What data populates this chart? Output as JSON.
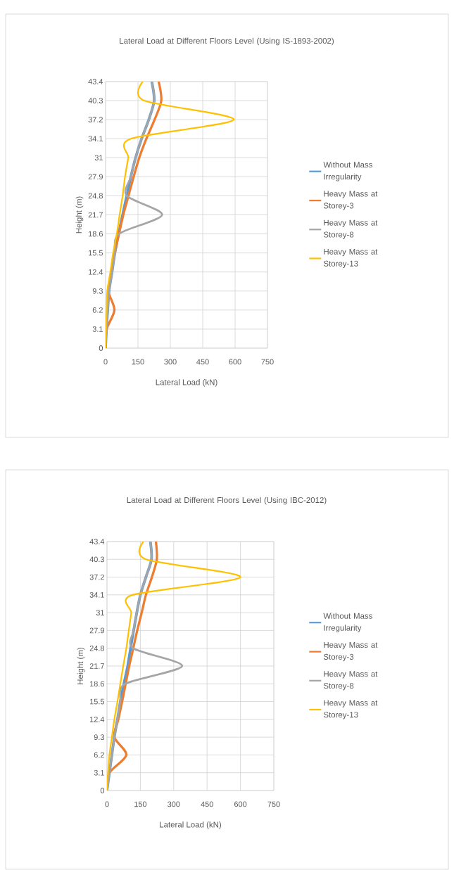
{
  "chart_data": [
    {
      "type": "line",
      "title": "Lateral Load at Different Floors Level (Using IS-1893-2002)",
      "xlabel": "Lateral Load (kN)",
      "ylabel": "Height (m)",
      "xlim": [
        0,
        750
      ],
      "xticks": [
        0,
        150,
        300,
        450,
        600,
        750
      ],
      "ylim": [
        0,
        43.4
      ],
      "yticks": [
        0,
        3.1,
        6.2,
        9.3,
        12.4,
        15.5,
        18.6,
        21.7,
        24.8,
        27.9,
        31,
        34.1,
        37.2,
        40.3,
        43.4
      ],
      "grid": true,
      "legend": "right",
      "series": [
        {
          "name": "Without Mass Irregularity",
          "color": "#5b9bd5",
          "x": [
            0,
            4,
            10,
            16,
            30,
            43,
            60,
            79,
            98,
            117,
            139,
            167,
            200,
            225,
            214
          ],
          "values": [
            0,
            3.1,
            6.2,
            9.3,
            12.4,
            15.5,
            18.6,
            21.7,
            24.8,
            27.9,
            31,
            34.1,
            37.2,
            40.3,
            43.4
          ]
        },
        {
          "name": "Heavy Mass at Storey-3",
          "color": "#ed7d31",
          "x": [
            0,
            5,
            41,
            13,
            27,
            43,
            62,
            82,
            106,
            130,
            156,
            189,
            227,
            258,
            246
          ],
          "values": [
            0,
            3.1,
            6.2,
            9.3,
            12.4,
            15.5,
            18.6,
            21.7,
            24.8,
            27.9,
            31,
            34.1,
            37.2,
            40.3,
            43.4
          ]
        },
        {
          "name": "Heavy Mass at Storey-8",
          "color": "#a5a5a5",
          "x": [
            0,
            4,
            10,
            16,
            30,
            43,
            62,
            262,
            98,
            117,
            139,
            167,
            200,
            225,
            214
          ],
          "values": [
            0,
            3.1,
            6.2,
            9.3,
            12.4,
            15.5,
            18.6,
            21.7,
            24.8,
            27.9,
            31,
            34.1,
            37.2,
            40.3,
            43.4
          ]
        },
        {
          "name": "Heavy Mass at Storey-13",
          "color": "#ffc000",
          "x": [
            0,
            2,
            5,
            8,
            22,
            35,
            52,
            65,
            79,
            90,
            105,
            117,
            594,
            178,
            172
          ],
          "values": [
            0,
            3.1,
            6.2,
            9.3,
            12.4,
            15.5,
            18.6,
            21.7,
            24.8,
            27.9,
            31,
            34.1,
            37.2,
            40.3,
            43.4
          ]
        }
      ]
    },
    {
      "type": "line",
      "title": "Lateral Load at Different Floors Level (Using IBC-2012)",
      "xlabel": "Lateral Load (kN)",
      "ylabel": "Height (m)",
      "xlim": [
        0,
        750
      ],
      "xticks": [
        0,
        150,
        300,
        450,
        600,
        750
      ],
      "ylim": [
        0,
        43.4
      ],
      "yticks": [
        0,
        3.1,
        6.2,
        9.3,
        12.4,
        15.5,
        18.6,
        21.7,
        24.8,
        27.9,
        31,
        34.1,
        37.2,
        40.3,
        43.4
      ],
      "grid": true,
      "legend": "right",
      "series": [
        {
          "name": "Without Mass Irregularity",
          "color": "#5b9bd5",
          "x": [
            0,
            11,
            22,
            33,
            47,
            60,
            76,
            93,
            106,
            120,
            134,
            150,
            175,
            200,
            195
          ],
          "values": [
            0,
            3.1,
            6.2,
            9.3,
            12.4,
            15.5,
            18.6,
            21.7,
            24.8,
            27.9,
            31,
            34.1,
            37.2,
            40.3,
            43.4
          ]
        },
        {
          "name": "Heavy Mass at Storey-3",
          "color": "#ed7d31",
          "x": [
            0,
            11,
            87,
            33,
            51,
            68,
            84,
            100,
            118,
            136,
            156,
            175,
            202,
            224,
            220
          ],
          "values": [
            0,
            3.1,
            6.2,
            9.3,
            12.4,
            15.5,
            18.6,
            21.7,
            24.8,
            27.9,
            31,
            34.1,
            37.2,
            40.3,
            43.4
          ]
        },
        {
          "name": "Heavy Mass at Storey-8",
          "color": "#a5a5a5",
          "x": [
            0,
            11,
            22,
            33,
            47,
            60,
            82,
            338,
            117,
            120,
            134,
            150,
            175,
            200,
            195
          ],
          "values": [
            0,
            3.1,
            6.2,
            9.3,
            12.4,
            15.5,
            18.6,
            21.7,
            24.8,
            27.9,
            31,
            34.1,
            37.2,
            40.3,
            43.4
          ]
        },
        {
          "name": "Heavy Mass at Storey-13",
          "color": "#ffc000",
          "x": [
            0,
            5,
            11,
            22,
            33,
            47,
            60,
            73,
            87,
            98,
            109,
            115,
            600,
            175,
            164
          ],
          "values": [
            0,
            3.1,
            6.2,
            9.3,
            12.4,
            15.5,
            18.6,
            21.7,
            24.8,
            27.9,
            31,
            34.1,
            37.2,
            40.3,
            43.4
          ]
        }
      ]
    }
  ]
}
